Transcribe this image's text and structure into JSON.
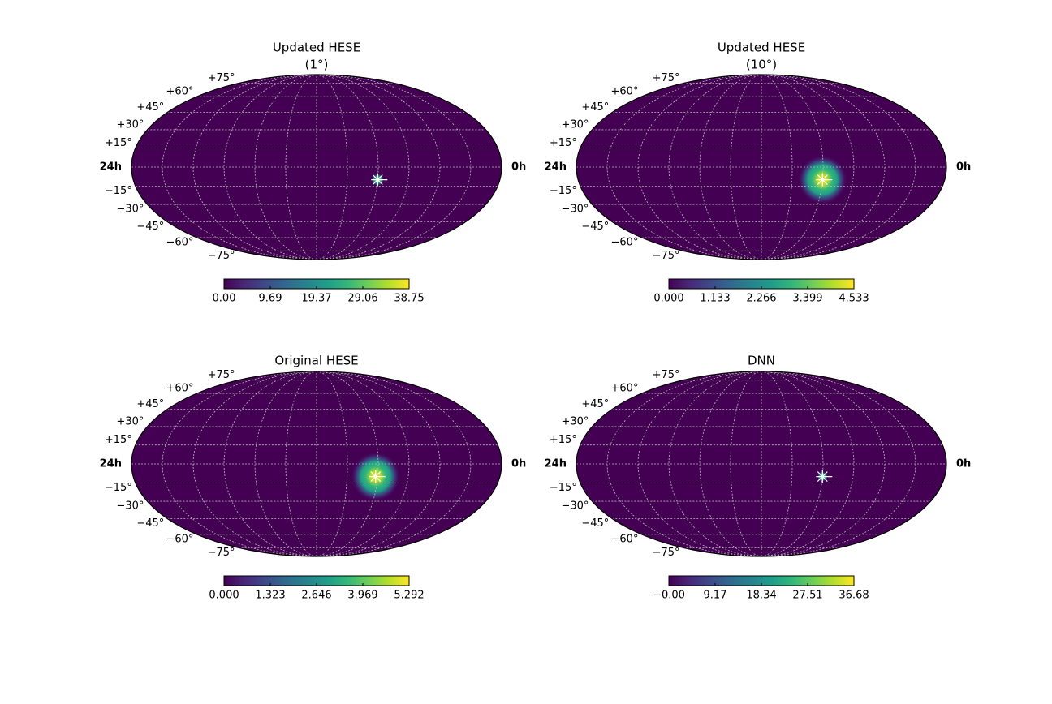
{
  "chart_data": [
    {
      "type": "skymap",
      "title": "Updated HESE",
      "subtitle": "(1°)",
      "xticks": [
        {
          "value": 24,
          "label": "24h"
        },
        {
          "value": 0,
          "label": "0h"
        }
      ],
      "yticks": [
        {
          "value": 75,
          "label": "+75°"
        },
        {
          "value": 60,
          "label": "+60°"
        },
        {
          "value": 45,
          "label": "+45°"
        },
        {
          "value": 30,
          "label": "+30°"
        },
        {
          "value": 15,
          "label": "+15°"
        },
        {
          "value": -15,
          "label": "−15°"
        },
        {
          "value": -30,
          "label": "−30°"
        },
        {
          "value": -45,
          "label": "−45°"
        },
        {
          "value": -60,
          "label": "−60°"
        },
        {
          "value": -75,
          "label": "−75°"
        }
      ],
      "hotspot": {
        "ra": 120,
        "dec": -10,
        "radius_deg": 6
      },
      "clim": [
        0,
        38.75
      ],
      "cticks": [
        {
          "value": 0,
          "label": "0.00"
        },
        9.69,
        19.37,
        29.06,
        38.75
      ]
    },
    {
      "type": "skymap",
      "title": "Updated HESE",
      "subtitle": "(10°)",
      "xticks": [
        {
          "value": 24,
          "label": "24h"
        },
        {
          "value": 0,
          "label": "0h"
        }
      ],
      "yticks": [
        {
          "value": 75,
          "label": "+75°"
        },
        {
          "value": 60,
          "label": "+60°"
        },
        {
          "value": 45,
          "label": "+45°"
        },
        {
          "value": 30,
          "label": "+30°"
        },
        {
          "value": 15,
          "label": "+15°"
        },
        {
          "value": -15,
          "label": "−15°"
        },
        {
          "value": -30,
          "label": "−30°"
        },
        {
          "value": -45,
          "label": "−45°"
        },
        {
          "value": -60,
          "label": "−60°"
        },
        {
          "value": -75,
          "label": "−75°"
        }
      ],
      "hotspot": {
        "ra": 120,
        "dec": -10,
        "radius_deg": 24
      },
      "clim": [
        0,
        4.533
      ],
      "cticks": [
        {
          "value": 0,
          "label": "0.000"
        },
        1.133,
        2.266,
        3.399,
        4.533
      ]
    },
    {
      "type": "skymap",
      "title": "Original HESE",
      "xticks": [
        {
          "value": 24,
          "label": "24h"
        },
        {
          "value": 0,
          "label": "0h"
        }
      ],
      "yticks": [
        {
          "value": 75,
          "label": "+75°"
        },
        {
          "value": 60,
          "label": "+60°"
        },
        {
          "value": 45,
          "label": "+45°"
        },
        {
          "value": 30,
          "label": "+30°"
        },
        {
          "value": 15,
          "label": "+15°"
        },
        {
          "value": -15,
          "label": "−15°"
        },
        {
          "value": -30,
          "label": "−30°"
        },
        {
          "value": -45,
          "label": "−45°"
        },
        {
          "value": -60,
          "label": "−60°"
        },
        {
          "value": -75,
          "label": "−75°"
        }
      ],
      "hotspot": {
        "ra": 122,
        "dec": -10,
        "radius_deg": 24
      },
      "clim": [
        0,
        5.292
      ],
      "cticks": [
        {
          "value": 0,
          "label": "0.000"
        },
        1.323,
        2.646,
        3.969,
        5.292
      ]
    },
    {
      "type": "skymap",
      "title": "DNN",
      "xticks": [
        {
          "value": 24,
          "label": "24h"
        },
        {
          "value": 0,
          "label": "0h"
        }
      ],
      "yticks": [
        {
          "value": 75,
          "label": "+75°"
        },
        {
          "value": 60,
          "label": "+60°"
        },
        {
          "value": 45,
          "label": "+45°"
        },
        {
          "value": 30,
          "label": "+30°"
        },
        {
          "value": 15,
          "label": "+15°"
        },
        {
          "value": -15,
          "label": "−15°"
        },
        {
          "value": -30,
          "label": "−30°"
        },
        {
          "value": -45,
          "label": "−45°"
        },
        {
          "value": -60,
          "label": "−60°"
        },
        {
          "value": -75,
          "label": "−75°"
        }
      ],
      "hotspot": {
        "ra": 120,
        "dec": -10,
        "radius_deg": 5
      },
      "clim": [
        0,
        36.68
      ],
      "cticks": [
        {
          "value": 0,
          "label": "−0.00"
        },
        9.17,
        18.34,
        27.51,
        36.68
      ]
    }
  ]
}
